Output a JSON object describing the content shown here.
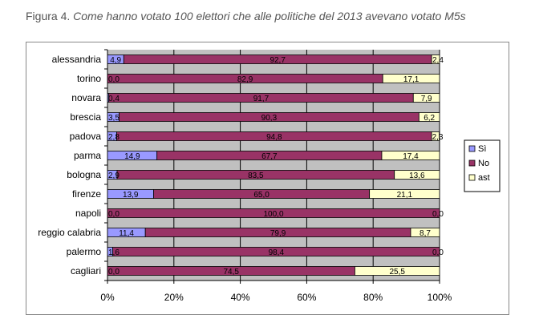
{
  "caption": {
    "prefix": "Figura 4.",
    "title": "Come hanno votato 100 elettori che alle politiche del 2013 avevano votato M5s"
  },
  "chart_data": {
    "type": "bar",
    "orientation": "horizontal",
    "stacked": "percent",
    "categories": [
      "alessandria",
      "torino",
      "novara",
      "brescia",
      "padova",
      "parma",
      "bologna",
      "firenze",
      "napoli",
      "reggio calabria",
      "palermo",
      "cagliari"
    ],
    "series": [
      {
        "name": "Sì",
        "color": "#9999FF",
        "values": [
          4.9,
          0.0,
          0.4,
          3.5,
          2.8,
          14.9,
          2.9,
          13.9,
          0.0,
          11.4,
          1.6,
          0.0
        ],
        "labels": [
          "4,9",
          "0,0",
          "0,4",
          "3,5",
          "2,8",
          "14,9",
          "2,9",
          "13,9",
          "0,0",
          "11,4",
          "1,6",
          "0,0"
        ]
      },
      {
        "name": "No",
        "color": "#993366",
        "values": [
          92.7,
          82.9,
          91.7,
          90.3,
          94.8,
          67.7,
          83.5,
          65.0,
          100.0,
          79.9,
          98.4,
          74.5
        ],
        "labels": [
          "92,7",
          "82,9",
          "91,7",
          "90,3",
          "94,8",
          "67,7",
          "83,5",
          "65,0",
          "100,0",
          "79,9",
          "98,4",
          "74,5"
        ]
      },
      {
        "name": "ast",
        "color": "#FFFFCC",
        "values": [
          2.4,
          17.1,
          7.9,
          6.2,
          2.3,
          17.4,
          13.6,
          21.1,
          0.0,
          8.7,
          0.0,
          25.5
        ],
        "labels": [
          "2,4",
          "17,1",
          "7,9",
          "6,2",
          "2,3",
          "17,4",
          "13,6",
          "21,1",
          "0,0",
          "8,7",
          "0,0",
          "25,5"
        ]
      }
    ],
    "xlim": [
      0,
      100
    ],
    "xticks": [
      "0%",
      "20%",
      "40%",
      "60%",
      "80%",
      "100%"
    ],
    "plot_background": "#C0C0C0",
    "grid": true,
    "legend_position": "right"
  }
}
